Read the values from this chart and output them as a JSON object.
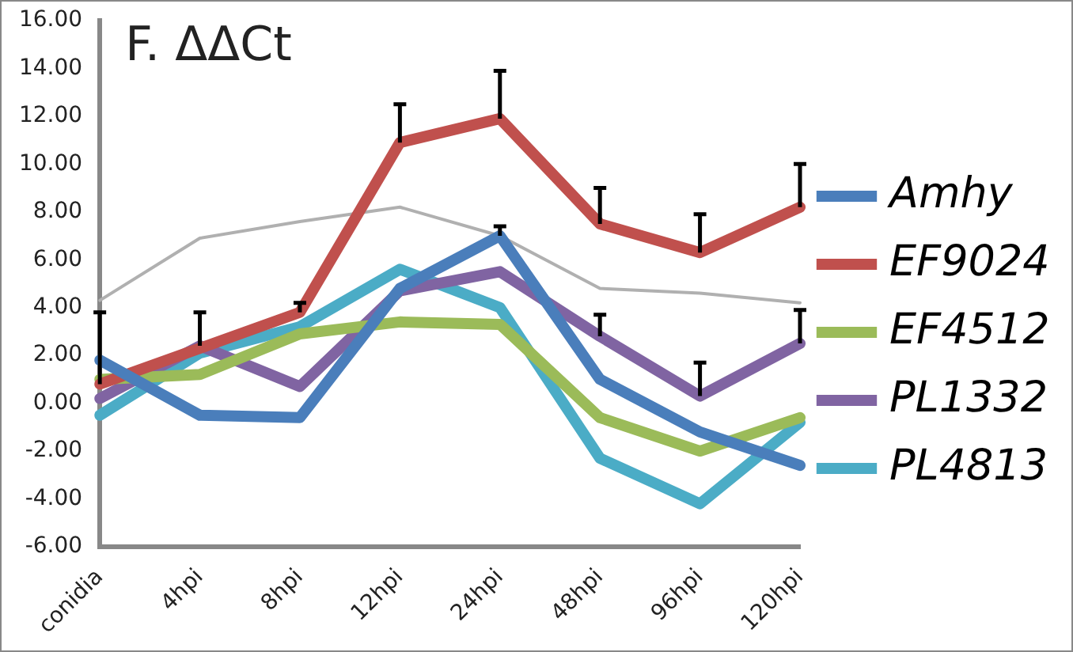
{
  "chart_data": {
    "type": "line",
    "title": "F. ΔΔCt",
    "categories": [
      "conidia",
      "4hpi",
      "8hpi",
      "12hpi",
      "24hpi",
      "48hpi",
      "96hpi",
      "120hpi"
    ],
    "series": [
      {
        "name": "Amhy",
        "color": "#4a7ebb",
        "values": [
          1.8,
          -0.5,
          -0.6,
          4.8,
          7.0,
          1.0,
          -1.2,
          -2.6
        ],
        "errors": [
          null,
          null,
          null,
          null,
          [
            7.0,
            7.4
          ],
          null,
          null,
          null
        ]
      },
      {
        "name": "EF9024",
        "color": "#c0504d",
        "values": [
          0.8,
          2.3,
          3.8,
          10.9,
          11.9,
          7.5,
          6.3,
          8.2
        ],
        "errors": [
          [
            0.8,
            3.8
          ],
          null,
          [
            3.8,
            4.2
          ],
          [
            10.9,
            12.5
          ],
          [
            11.9,
            13.9
          ],
          [
            7.5,
            9.0
          ],
          [
            6.3,
            7.9
          ],
          [
            8.2,
            10.0
          ]
        ]
      },
      {
        "name": "EF4512",
        "color": "#9bbb59",
        "values": [
          1.0,
          1.2,
          2.9,
          3.4,
          3.3,
          -0.6,
          -2.0,
          -0.6
        ]
      },
      {
        "name": "PL1332",
        "color": "#8064a2",
        "values": [
          0.2,
          2.4,
          0.7,
          4.7,
          5.5,
          2.8,
          0.3,
          2.5
        ],
        "errors": [
          null,
          [
            2.4,
            3.8
          ],
          null,
          null,
          null,
          [
            2.8,
            3.7
          ],
          [
            0.3,
            1.7
          ],
          [
            2.5,
            3.9
          ]
        ]
      },
      {
        "name": "PL4813",
        "color": "#4bacc6",
        "values": [
          -0.5,
          2.1,
          3.2,
          5.6,
          4.0,
          -2.3,
          -4.2,
          -0.8
        ]
      },
      {
        "color": "#b0b0b0",
        "values": [
          4.3,
          6.9,
          7.6,
          8.2,
          7.0,
          4.8,
          4.6,
          4.2
        ]
      }
    ],
    "ylim": [
      -6,
      16
    ],
    "yticks": [
      {
        "value": -6,
        "label": "-6.00"
      },
      {
        "value": -4,
        "label": "-4.00"
      },
      {
        "value": -2,
        "label": "-2.00"
      },
      {
        "value": 0,
        "label": "0.00"
      },
      {
        "value": 2,
        "label": "2.00"
      },
      {
        "value": 4,
        "label": "4.00"
      },
      {
        "value": 6,
        "label": "6.00"
      },
      {
        "value": 8,
        "label": "8.00"
      },
      {
        "value": 10,
        "label": "10.00"
      },
      {
        "value": 12,
        "label": "12.00"
      },
      {
        "value": 14,
        "label": "14.00"
      },
      {
        "value": 16,
        "label": "16.00"
      }
    ],
    "grid": false,
    "legend": "right",
    "marker": "none",
    "line_style": "solid"
  }
}
